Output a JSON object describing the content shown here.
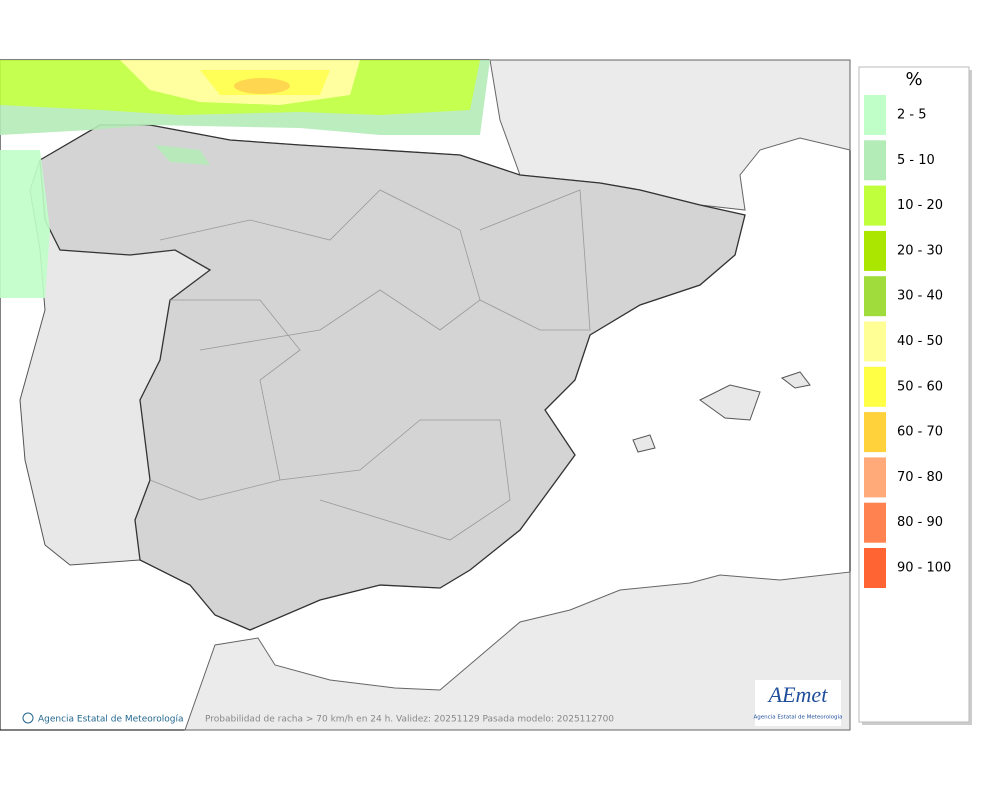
{
  "legend": {
    "title": "%",
    "items": [
      {
        "label": "2 - 5",
        "color": "#c0ffc8"
      },
      {
        "label": "5 - 10",
        "color": "#b4ecb8"
      },
      {
        "label": "10 - 20",
        "color": "#bfff3c"
      },
      {
        "label": "20 - 30",
        "color": "#aae600"
      },
      {
        "label": "30 - 40",
        "color": "#a0dc3c"
      },
      {
        "label": "40 - 50",
        "color": "#ffff96"
      },
      {
        "label": "50 - 60",
        "color": "#ffff46"
      },
      {
        "label": "60 - 70",
        "color": "#ffd23c"
      },
      {
        "label": "70 - 80",
        "color": "#ffaa78"
      },
      {
        "label": "80 - 90",
        "color": "#ff8250"
      },
      {
        "label": "90 - 100",
        "color": "#ff6432"
      }
    ]
  },
  "footer": {
    "copyright": "Agencia Estatal de Meteorología",
    "caption": "Probabilidad de racha > 70 km/h en 24 h. Validez: 20251129 Pasada modelo: 2025112700"
  },
  "logo": {
    "name": "AEmet",
    "subtitle": "Agencia Estatal de Meteorología"
  }
}
